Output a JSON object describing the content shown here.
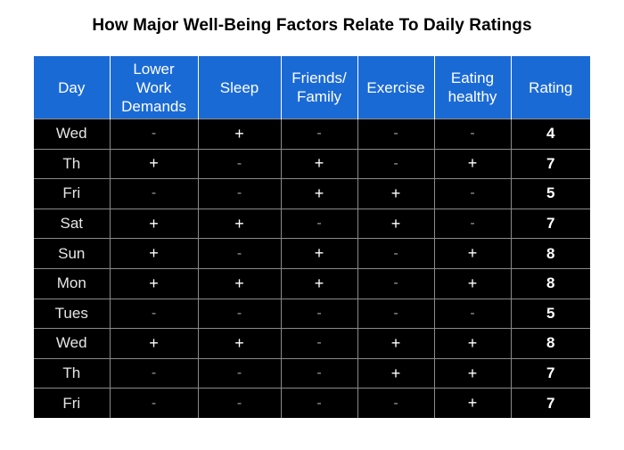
{
  "chart_data": {
    "type": "table",
    "title": "How Major Well-Being Factors Relate To Daily Ratings",
    "columns": [
      "Day",
      "Lower\nWork\nDemands",
      "Sleep",
      "Friends/\nFamily",
      "Exercise",
      "Eating\nhealthy",
      "Rating"
    ],
    "rows": [
      [
        "Wed",
        "-",
        "+",
        "-",
        "-",
        "-",
        "4"
      ],
      [
        "Th",
        "+",
        "-",
        "+",
        "-",
        "+",
        "7"
      ],
      [
        "Fri",
        "-",
        "-",
        "+",
        "+",
        "-",
        "5"
      ],
      [
        "Sat",
        "+",
        "+",
        "-",
        "+",
        "-",
        "7"
      ],
      [
        "Sun",
        "+",
        "-",
        "+",
        "-",
        "+",
        "8"
      ],
      [
        "Mon",
        "+",
        "+",
        "+",
        "-",
        "+",
        "8"
      ],
      [
        "Tues",
        "-",
        "-",
        "-",
        "-",
        "-",
        "5"
      ],
      [
        "Wed",
        "+",
        "+",
        "-",
        "+",
        "+",
        "8"
      ],
      [
        "Th",
        "-",
        "-",
        "-",
        "+",
        "+",
        "7"
      ],
      [
        "Fri",
        "-",
        "-",
        "-",
        "-",
        "+",
        "7"
      ]
    ],
    "colors": {
      "header_background": "#1a6ad6",
      "header_text": "#ffffff",
      "cell_background": "#000000",
      "cell_border": "#8a8a8a"
    }
  }
}
